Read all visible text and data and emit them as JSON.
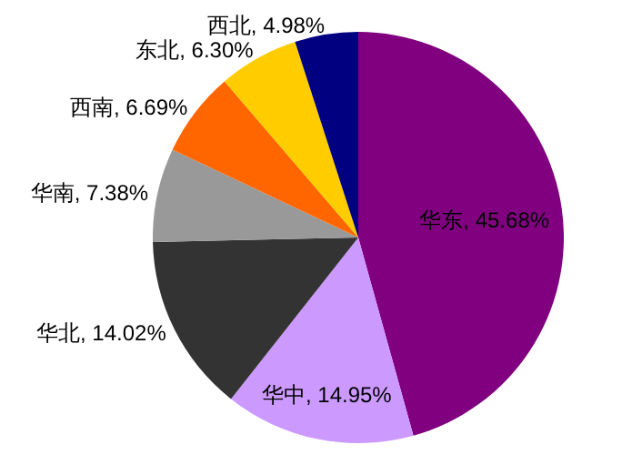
{
  "chart_data": {
    "type": "pie",
    "categories": [
      "华东",
      "华中",
      "华北",
      "华南",
      "西南",
      "东北",
      "西北"
    ],
    "values": [
      45.68,
      14.95,
      14.02,
      7.38,
      6.69,
      6.3,
      4.98
    ],
    "colors": [
      "#800080",
      "#cc99ff",
      "#333333",
      "#999999",
      "#ff6600",
      "#ffcc00",
      "#000080"
    ],
    "value_labels": [
      "45.68%",
      "14.95%",
      "14.02%",
      "7.38%",
      "6.69%",
      "6.30%",
      "4.98%"
    ]
  }
}
